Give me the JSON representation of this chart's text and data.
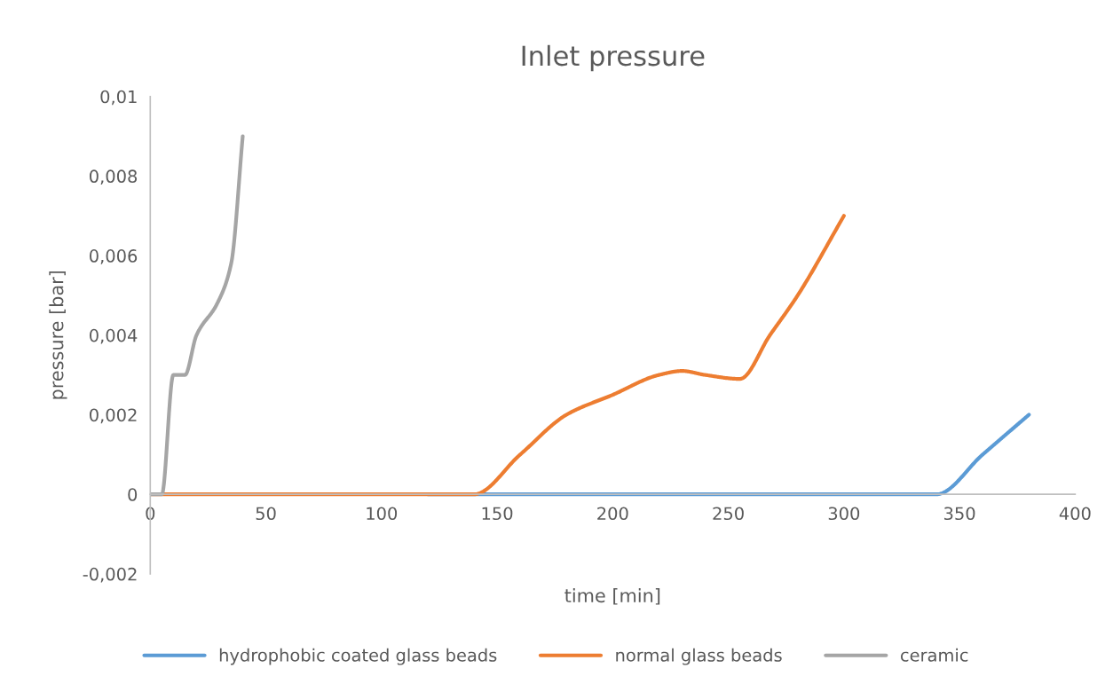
{
  "chart_data": {
    "type": "line",
    "title": "Inlet pressure",
    "xlabel": "time [min]",
    "ylabel": "pressure [bar]",
    "series": [
      {
        "name": "hydrophobic coated glass beads",
        "color": "#5b9bd5",
        "x": [
          120,
          140,
          160,
          180,
          200,
          220,
          240,
          260,
          280,
          300,
          320,
          340,
          360,
          380
        ],
        "values": [
          0,
          0,
          0,
          0,
          0,
          0,
          0,
          0,
          0,
          0,
          0,
          0,
          0.001,
          0.002
        ]
      },
      {
        "name": "normal glass beads",
        "color": "#ed7d31",
        "x": [
          0,
          20,
          40,
          60,
          80,
          100,
          120,
          140,
          160,
          180,
          200,
          220,
          230,
          240,
          255,
          268,
          280,
          300
        ],
        "values": [
          0,
          0,
          0,
          0,
          0,
          0,
          0,
          0,
          0.001,
          0.002,
          0.0025,
          0.003,
          0.0031,
          0.003,
          0.0029,
          0.004,
          0.005,
          0.007
        ]
      },
      {
        "name": "ceramic",
        "color": "#a5a5a5",
        "x": [
          0,
          5,
          10,
          15,
          20,
          29,
          35,
          40
        ],
        "values": [
          0,
          0,
          0.003,
          0.003,
          0.004,
          0.0048,
          0.0058,
          0.009
        ]
      }
    ],
    "xlim": [
      0,
      400
    ],
    "xticks": [
      0,
      50,
      100,
      150,
      200,
      250,
      300,
      350,
      400
    ],
    "ylim": [
      -0.002,
      0.01
    ],
    "yticks": [
      {
        "value": -0.002,
        "label": "-0,002"
      },
      {
        "value": 0,
        "label": "0"
      },
      {
        "value": 0.002,
        "label": "0,002"
      },
      {
        "value": 0.004,
        "label": "0,004"
      },
      {
        "value": 0.006,
        "label": "0,006"
      },
      {
        "value": 0.008,
        "label": "0,008"
      },
      {
        "value": 0.01,
        "label": "0,01"
      }
    ],
    "grid": false,
    "legend": "bottom",
    "line_style": "solid",
    "marker": "none"
  }
}
